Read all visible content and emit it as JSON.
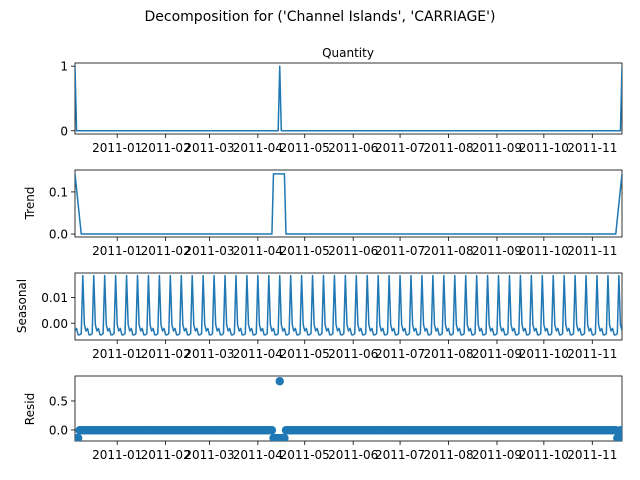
{
  "suptitle": "Decomposition for ('Channel Islands', 'CARRIAGE')",
  "x_tick_labels": [
    "2011-01",
    "2011-02",
    "2011-03",
    "2011-04",
    "2011-05",
    "2011-06",
    "2011-07",
    "2011-08",
    "2011-09",
    "2011-10",
    "2011-11"
  ],
  "chart_data": [
    {
      "type": "line",
      "title": "Quantity",
      "ylabel": "",
      "xlim": [
        "2010-12-05",
        "2011-11-20"
      ],
      "ylim": [
        -0.05,
        1.05
      ],
      "yticks": [
        0,
        1
      ],
      "ytick_labels": [
        "0",
        "1"
      ],
      "series": [
        {
          "x": [
            "2010-12-05",
            "2010-12-06",
            "2011-04-14",
            "2011-04-15",
            "2011-04-16",
            "2011-11-19",
            "2011-11-20"
          ],
          "y": [
            1,
            0,
            0,
            1,
            0,
            0,
            1
          ]
        }
      ]
    },
    {
      "type": "line",
      "title": "",
      "ylabel": "Trend",
      "xlim": [
        "2010-12-05",
        "2011-11-20"
      ],
      "ylim": [
        -0.007,
        0.152
      ],
      "yticks": [
        0.0,
        0.1
      ],
      "ytick_labels": [
        "0.0",
        "0.1"
      ],
      "series": [
        {
          "x": [
            "2010-12-05",
            "2010-12-09",
            "2011-04-10",
            "2011-04-11",
            "2011-04-18",
            "2011-04-19",
            "2011-11-16",
            "2011-11-20"
          ],
          "y": [
            0.1429,
            0,
            0,
            0.1429,
            0.1429,
            0,
            0,
            0.1429
          ]
        }
      ]
    },
    {
      "type": "line",
      "title": "",
      "ylabel": "Seasonal",
      "xlim": [
        "2010-12-05",
        "2011-11-20"
      ],
      "ylim": [
        -0.0065,
        0.0195
      ],
      "yticks": [
        0.0,
        0.01
      ],
      "ytick_labels": [
        "0.00",
        "0.01"
      ],
      "seasonal_period_days": 7,
      "seasonal_pattern": [
        -0.003,
        -0.002,
        -0.0045,
        -0.0045,
        -0.004,
        0.0185,
        -0.0005
      ],
      "series": [
        {
          "x_start": "2010-12-05",
          "x_end": "2011-11-20",
          "weekly_pattern": [
            -0.003,
            -0.002,
            -0.0045,
            -0.0045,
            -0.004,
            0.0185,
            -0.0005
          ]
        }
      ]
    },
    {
      "type": "scatter",
      "title": "",
      "ylabel": "Resid",
      "xlim": [
        "2010-12-05",
        "2011-11-20"
      ],
      "ylim": [
        -0.19,
        0.93
      ],
      "yticks": [
        0.0,
        0.5
      ],
      "ytick_labels": [
        "0.0",
        "0.5"
      ],
      "baseline_value": -0.005,
      "special_points": [
        {
          "x": "2010-12-05",
          "y": -0.14
        },
        {
          "x": "2010-12-06",
          "y": -0.14
        },
        {
          "x": "2010-12-07",
          "y": -0.14
        },
        {
          "x": "2011-04-11",
          "y": -0.14
        },
        {
          "x": "2011-04-12",
          "y": -0.14
        },
        {
          "x": "2011-04-13",
          "y": -0.14
        },
        {
          "x": "2011-04-14",
          "y": -0.14
        },
        {
          "x": "2011-04-15",
          "y": 0.84
        },
        {
          "x": "2011-04-16",
          "y": -0.14
        },
        {
          "x": "2011-04-17",
          "y": -0.14
        },
        {
          "x": "2011-04-18",
          "y": -0.14
        },
        {
          "x": "2011-11-17",
          "y": -0.14
        },
        {
          "x": "2011-11-18",
          "y": -0.14
        }
      ]
    }
  ]
}
